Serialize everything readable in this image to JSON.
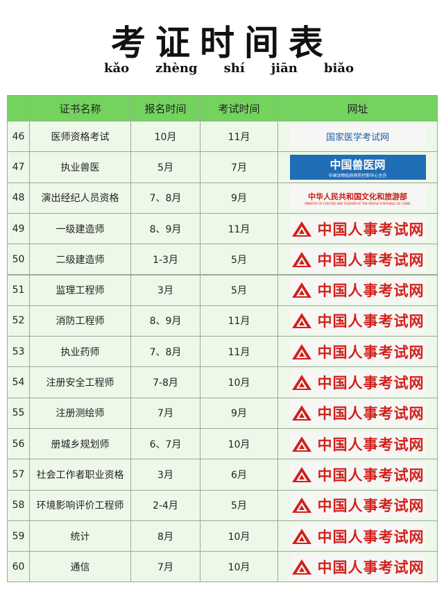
{
  "header": {
    "title": "考证时间表",
    "pinyin": [
      "kǎo",
      "zhèng",
      "shí",
      "jiān",
      "biǎo"
    ]
  },
  "table": {
    "columns": [
      "证书名称",
      "报名时间",
      "考试时间",
      "网址"
    ],
    "rows": [
      [
        46,
        "医师资格考试",
        "10月",
        "11月",
        {
          "name": "国家医学考试网"
        }
      ],
      [
        47,
        "执业兽医",
        "5月",
        "7月",
        {
          "name": "中国兽医网",
          "subtitle": "中国动物疫病预防控制中心主办"
        }
      ],
      [
        48,
        "演出经纪人员资格",
        "7、8月",
        "9月",
        {
          "name": "中华人民共和国文化和旅游部",
          "subtitle": "MINISTRY OF CULTURE AND TOURISM OF THE PEOPLE'S REPUBLIC OF CHINA"
        }
      ],
      [
        49,
        "一级建造师",
        "8、9月",
        "11月",
        {
          "name": "中国人事考试网"
        }
      ],
      [
        50,
        "二级建造师",
        "1-3月",
        "5月",
        {
          "name": "中国人事考试网"
        }
      ],
      [
        51,
        "监理工程师",
        "3月",
        "5月",
        {
          "name": "中国人事考试网"
        }
      ],
      [
        52,
        "消防工程师",
        "8、9月",
        "11月",
        {
          "name": "中国人事考试网"
        }
      ],
      [
        53,
        "执业药师",
        "7、8月",
        "11月",
        {
          "name": "中国人事考试网"
        }
      ],
      [
        54,
        "注册安全工程师",
        "7-8月",
        "10月",
        {
          "name": "中国人事考试网"
        }
      ],
      [
        55,
        "注册测绘师",
        "7月",
        "9月",
        {
          "name": "中国人事考试网"
        }
      ],
      [
        56,
        "册城乡规划师",
        "6、7月",
        "10月",
        {
          "name": "中国人事考试网"
        }
      ],
      [
        57,
        "社会工作者职业资格",
        "3月",
        "6月",
        {
          "name": "中国人事考试网"
        }
      ],
      [
        58,
        "环境影响评价工程师",
        "2-4月",
        "5月",
        {
          "name": "中国人事考试网"
        }
      ],
      [
        59,
        "统计",
        "8月",
        "10月",
        {
          "name": "中国人事考试网"
        }
      ],
      [
        60,
        "通信",
        "7月",
        "10月",
        {
          "name": "中国人事考试网"
        }
      ]
    ]
  }
}
